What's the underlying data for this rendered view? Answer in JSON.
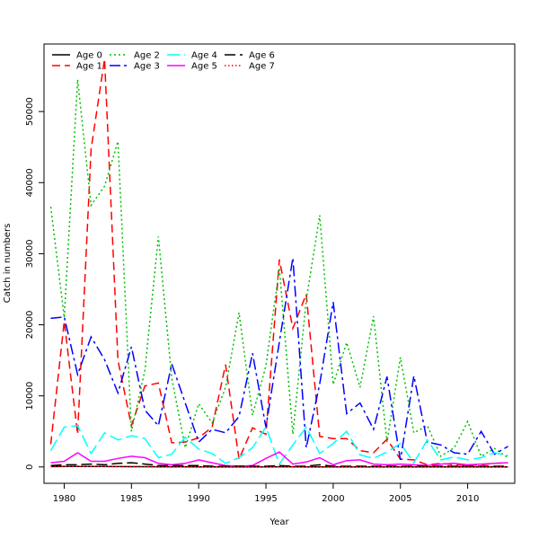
{
  "chart_data": {
    "type": "line",
    "title": "",
    "xlabel": "Year",
    "ylabel": "Catch in numbers",
    "xlim": [
      1978.5,
      2013.5
    ],
    "ylim": [
      -2300,
      59500
    ],
    "x_ticks": [
      1980,
      1985,
      1990,
      1995,
      2000,
      2005,
      2010
    ],
    "y_ticks": [
      0,
      10000,
      20000,
      30000,
      40000,
      50000
    ],
    "grid": false,
    "legend": {
      "position": "top-left",
      "columns": 4
    },
    "x": [
      1979,
      1980,
      1981,
      1982,
      1983,
      1984,
      1985,
      1986,
      1987,
      1988,
      1989,
      1990,
      1991,
      1992,
      1993,
      1994,
      1995,
      1996,
      1997,
      1998,
      1999,
      2000,
      2001,
      2002,
      2003,
      2004,
      2005,
      2006,
      2007,
      2008,
      2009,
      2010,
      2011,
      2012,
      2013
    ],
    "series": [
      {
        "name": "Age 0",
        "color": "#000000",
        "dash": "",
        "values": [
          50,
          80,
          60,
          70,
          60,
          50,
          40,
          40,
          30,
          20,
          20,
          10,
          10,
          10,
          10,
          10,
          10,
          20,
          20,
          10,
          10,
          10,
          10,
          10,
          10,
          10,
          10,
          10,
          10,
          10,
          10,
          10,
          10,
          10,
          10
        ]
      },
      {
        "name": "Age 1",
        "color": "#ff0000",
        "dash": "9,5",
        "values": [
          3200,
          20500,
          4600,
          44700,
          57400,
          15000,
          5800,
          11400,
          11800,
          3400,
          3500,
          4100,
          5600,
          14400,
          1100,
          5500,
          4600,
          29200,
          19500,
          24300,
          4300,
          4000,
          4000,
          2300,
          2000,
          3900,
          1100,
          1000,
          300,
          500,
          300,
          200,
          300,
          500,
          600
        ]
      },
      {
        "name": "Age 2",
        "color": "#00c000",
        "dash": "2,3",
        "values": [
          36600,
          21000,
          54500,
          36800,
          39500,
          45800,
          5000,
          13600,
          32400,
          12500,
          2700,
          8900,
          6200,
          11200,
          21700,
          7300,
          14200,
          28000,
          4600,
          23500,
          35400,
          11600,
          17500,
          11200,
          21200,
          3500,
          15400,
          4800,
          5800,
          1500,
          2700,
          6400,
          1500,
          2600,
          1300
        ]
      },
      {
        "name": "Age 3",
        "color": "#0000ff",
        "dash": "12,4,3,4",
        "values": [
          20900,
          21100,
          13000,
          18300,
          15100,
          10400,
          16900,
          8000,
          5800,
          14500,
          9000,
          3500,
          5300,
          4800,
          7100,
          16000,
          5600,
          17600,
          29400,
          2700,
          11700,
          23200,
          7500,
          9000,
          5300,
          12700,
          1000,
          12800,
          3500,
          3100,
          2000,
          1800,
          5000,
          1800,
          2900
        ]
      },
      {
        "name": "Age 4",
        "color": "#00ffff",
        "dash": "14,5",
        "values": [
          2300,
          5600,
          5800,
          1900,
          4800,
          3800,
          4400,
          4000,
          1300,
          1800,
          4200,
          2500,
          1900,
          500,
          1300,
          2700,
          5600,
          400,
          3100,
          5600,
          1900,
          3300,
          5000,
          1700,
          1200,
          2100,
          3300,
          600,
          3800,
          1000,
          1400,
          1000,
          1300,
          2000,
          1600
        ]
      },
      {
        "name": "Age 5",
        "color": "#ff00ff",
        "dash": "",
        "values": [
          600,
          800,
          2000,
          800,
          800,
          1200,
          1500,
          1300,
          500,
          300,
          500,
          1000,
          600,
          200,
          100,
          200,
          1200,
          2100,
          400,
          700,
          1300,
          300,
          900,
          1000,
          400,
          300,
          400,
          300,
          200,
          400,
          500,
          300,
          400,
          500,
          600
        ]
      },
      {
        "name": "Age 6",
        "color": "#000000",
        "dash": "12,5",
        "values": [
          200,
          300,
          300,
          400,
          300,
          500,
          600,
          400,
          200,
          200,
          200,
          200,
          100,
          100,
          100,
          100,
          100,
          200,
          100,
          100,
          300,
          100,
          100,
          100,
          100,
          100,
          100,
          100,
          100,
          100,
          100,
          100,
          100,
          100,
          100
        ]
      },
      {
        "name": "Age 7",
        "color": "#ff0000",
        "dash": "1.5,2.5",
        "values": [
          50,
          60,
          70,
          60,
          50,
          60,
          80,
          50,
          40,
          30,
          30,
          20,
          20,
          20,
          20,
          20,
          20,
          30,
          20,
          20,
          30,
          20,
          20,
          20,
          20,
          20,
          20,
          20,
          20,
          20,
          20,
          20,
          20,
          20,
          20
        ]
      }
    ]
  }
}
